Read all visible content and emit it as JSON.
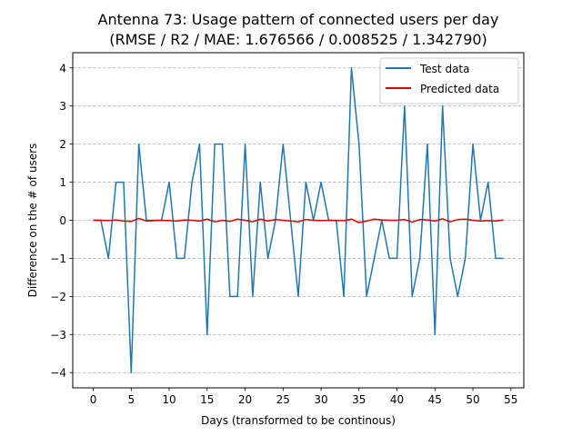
{
  "chart_data": {
    "type": "line",
    "title": "Antenna 73: Usage pattern of connected users per day",
    "subtitle": "(RMSE / R2 / MAE: 1.676566 / 0.008525 / 1.342790)",
    "xlabel": "Days (transformed to be continous)",
    "ylabel": "Difference on the # of users",
    "xlim": [
      -2.7,
      56.7
    ],
    "ylim": [
      -4.4,
      4.4
    ],
    "xticks": [
      0,
      5,
      10,
      15,
      20,
      25,
      30,
      35,
      40,
      45,
      50,
      55
    ],
    "yticks": [
      4,
      3,
      2,
      1,
      0,
      -1,
      -2,
      -3,
      -4
    ],
    "ytick_labels": [
      "4",
      "3",
      "2",
      "1",
      "0",
      "−1",
      "−2",
      "−3",
      "−4"
    ],
    "grid": "horizontal dashed",
    "legend_position": "top-right",
    "series": [
      {
        "name": "Test data",
        "color": "#1f77b4",
        "x": [
          0,
          1,
          2,
          3,
          4,
          5,
          6,
          7,
          8,
          9,
          10,
          11,
          12,
          13,
          14,
          15,
          16,
          17,
          18,
          19,
          20,
          21,
          22,
          23,
          24,
          25,
          26,
          27,
          28,
          29,
          30,
          31,
          32,
          33,
          34,
          35,
          36,
          37,
          38,
          39,
          40,
          41,
          42,
          43,
          44,
          45,
          46,
          47,
          48,
          49,
          50,
          51,
          52,
          53,
          54
        ],
        "values": [
          0,
          0,
          -1,
          1,
          1,
          -4,
          2,
          0,
          0,
          0,
          1,
          -1,
          -1,
          1,
          2,
          -3,
          2,
          2,
          -2,
          -2,
          2,
          -2,
          1,
          -1,
          0,
          2,
          0,
          -2,
          1,
          0,
          1,
          0,
          0,
          -2,
          4,
          2,
          -2,
          -1,
          0,
          -1,
          -1,
          3,
          -2,
          -1,
          2,
          -3,
          3,
          -1,
          -2,
          -1,
          2,
          0,
          1,
          -1,
          -1
        ]
      },
      {
        "name": "Predicted data",
        "color": "#e00000",
        "x": [
          0,
          1,
          2,
          3,
          4,
          5,
          6,
          7,
          8,
          9,
          10,
          11,
          12,
          13,
          14,
          15,
          16,
          17,
          18,
          19,
          20,
          21,
          22,
          23,
          24,
          25,
          26,
          27,
          28,
          29,
          30,
          31,
          32,
          33,
          34,
          35,
          36,
          37,
          38,
          39,
          40,
          41,
          42,
          43,
          44,
          45,
          46,
          47,
          48,
          49,
          50,
          51,
          52,
          53,
          54
        ],
        "values": [
          0.0,
          0.0,
          -0.01,
          0.01,
          -0.02,
          -0.03,
          0.05,
          -0.02,
          -0.01,
          0.0,
          -0.01,
          -0.02,
          0.01,
          0.0,
          -0.02,
          0.03,
          -0.04,
          0.0,
          -0.03,
          0.03,
          0.0,
          -0.04,
          0.03,
          -0.02,
          0.02,
          0.0,
          -0.02,
          -0.04,
          0.02,
          0.0,
          -0.01,
          0.0,
          -0.01,
          -0.01,
          0.03,
          -0.06,
          -0.02,
          0.03,
          0.01,
          0.0,
          0.0,
          0.02,
          -0.05,
          0.02,
          0.01,
          -0.02,
          0.04,
          -0.04,
          0.02,
          0.03,
          0.0,
          -0.02,
          -0.01,
          -0.02,
          0.01
        ]
      }
    ]
  }
}
